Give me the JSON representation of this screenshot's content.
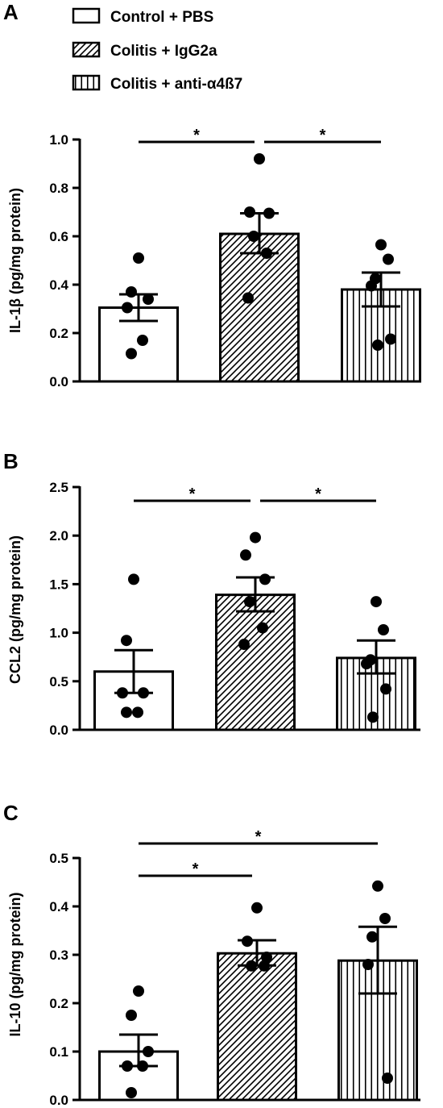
{
  "legend": [
    {
      "label": "Control + PBS",
      "pattern": "solid"
    },
    {
      "label": "Colitis + IgG2a",
      "pattern": "hatched"
    },
    {
      "label": "Colitis + anti-α4ß7",
      "pattern": "vertical"
    }
  ],
  "chart_data": [
    {
      "panel": "A",
      "type": "bar",
      "ylabel": "IL-1β (pg/mg protein)",
      "ylim": [
        0,
        1.0
      ],
      "yticks": [
        "0.0",
        "0.2",
        "0.4",
        "0.6",
        "0.8",
        "1.0"
      ],
      "ytick_values": [
        0,
        0.2,
        0.4,
        0.6,
        0.8,
        1.0
      ],
      "groups": [
        {
          "name": "Control + PBS",
          "mean": 0.305,
          "sem_low": 0.25,
          "sem_high": 0.36,
          "points": [
            0.51,
            0.37,
            0.34,
            0.305,
            0.17,
            0.115
          ]
        },
        {
          "name": "Colitis + IgG2a",
          "mean": 0.61,
          "sem_low": 0.53,
          "sem_high": 0.695,
          "points": [
            0.92,
            0.7,
            0.695,
            0.6,
            0.53,
            0.345
          ]
        },
        {
          "name": "Colitis + anti-α4ß7",
          "mean": 0.38,
          "sem_low": 0.31,
          "sem_high": 0.45,
          "points": [
            0.565,
            0.505,
            0.425,
            0.395,
            0.175,
            0.15
          ]
        }
      ],
      "significance": [
        {
          "from": 0,
          "to": 1,
          "label": "*"
        },
        {
          "from": 1,
          "to": 2,
          "label": "*"
        }
      ]
    },
    {
      "panel": "B",
      "type": "bar",
      "ylabel": "CCL2 (pg/mg protein)",
      "ylim": [
        0,
        2.5
      ],
      "yticks": [
        "0.0",
        "0.5",
        "1.0",
        "1.5",
        "2.0",
        "2.5"
      ],
      "ytick_values": [
        0,
        0.5,
        1.0,
        1.5,
        2.0,
        2.5
      ],
      "groups": [
        {
          "name": "Control + PBS",
          "mean": 0.6,
          "sem_low": 0.38,
          "sem_high": 0.82,
          "points": [
            1.55,
            0.92,
            0.38,
            0.38,
            0.18,
            0.18
          ]
        },
        {
          "name": "Colitis + IgG2a",
          "mean": 1.39,
          "sem_low": 1.22,
          "sem_high": 1.57,
          "points": [
            1.98,
            1.8,
            1.55,
            1.32,
            1.05,
            0.88
          ]
        },
        {
          "name": "Colitis + anti-α4ß7",
          "mean": 0.74,
          "sem_low": 0.58,
          "sem_high": 0.92,
          "points": [
            1.32,
            1.03,
            0.72,
            0.68,
            0.42,
            0.13
          ]
        }
      ],
      "significance": [
        {
          "from": 0,
          "to": 1,
          "label": "*"
        },
        {
          "from": 1,
          "to": 2,
          "label": "*"
        }
      ]
    },
    {
      "panel": "C",
      "type": "bar",
      "ylabel": "IL-10 (pg/mg protein)",
      "ylim": [
        0,
        0.5
      ],
      "yticks": [
        "0.0",
        "0.1",
        "0.2",
        "0.3",
        "0.4",
        "0.5"
      ],
      "ytick_values": [
        0,
        0.1,
        0.2,
        0.3,
        0.4,
        0.5
      ],
      "groups": [
        {
          "name": "Control + PBS",
          "mean": 0.1,
          "sem_low": 0.07,
          "sem_high": 0.135,
          "points": [
            0.225,
            0.175,
            0.1,
            0.07,
            0.07,
            0.015
          ]
        },
        {
          "name": "Colitis + IgG2a",
          "mean": 0.303,
          "sem_low": 0.278,
          "sem_high": 0.33,
          "points": [
            0.397,
            0.328,
            0.295,
            0.277,
            0.277
          ]
        },
        {
          "name": "Colitis + anti-α4ß7",
          "mean": 0.288,
          "sem_low": 0.22,
          "sem_high": 0.358,
          "points": [
            0.442,
            0.375,
            0.337,
            0.28,
            0.045
          ]
        }
      ],
      "significance": [
        {
          "from": 0,
          "to": 1,
          "label": "*",
          "level": 1
        },
        {
          "from": 0,
          "to": 2,
          "label": "*",
          "level": 2
        }
      ]
    }
  ]
}
